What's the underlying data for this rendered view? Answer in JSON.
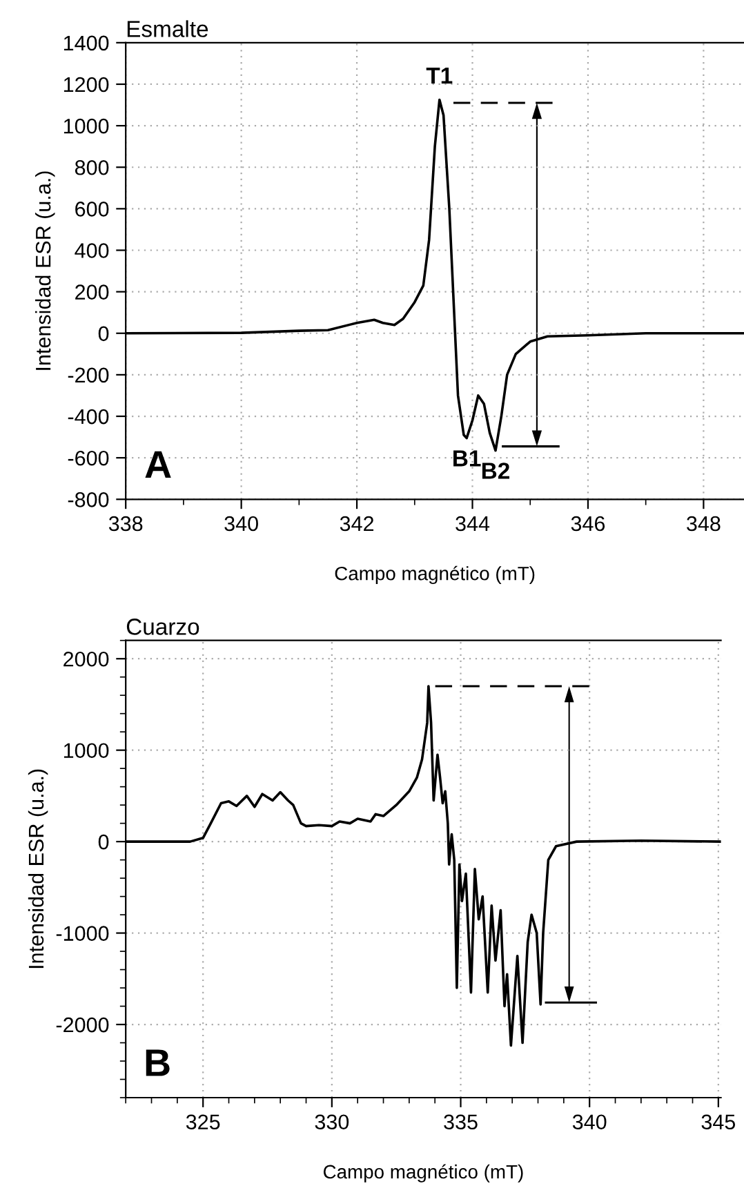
{
  "chart_data": [
    {
      "type": "line",
      "title": "Esmalte",
      "xlabel": "Campo magnético (mT)",
      "ylabel": "Intensidad ESR (u.a.)",
      "xlim": [
        338,
        348.7
      ],
      "xticks": [
        338,
        340,
        342,
        344,
        346,
        348
      ],
      "ylim": [
        -800,
        1400
      ],
      "yticks": [
        -800,
        -600,
        -400,
        -200,
        0,
        200,
        400,
        600,
        800,
        1000,
        1200,
        1400
      ],
      "grid": true,
      "legend": false,
      "line_style": "solid",
      "marker": "none",
      "series": [
        {
          "color": "#000000",
          "x": [
            338,
            340,
            341,
            341.5,
            342,
            342.3,
            342.45,
            342.65,
            342.8,
            343.0,
            343.15,
            343.25,
            343.35,
            343.43,
            343.5,
            343.6,
            343.7,
            343.75,
            343.85,
            343.9,
            344.0,
            344.1,
            344.2,
            344.3,
            344.4,
            344.5,
            344.6,
            344.75,
            345,
            345.3,
            346,
            347,
            348.7
          ],
          "values": [
            0,
            2,
            12,
            15,
            50,
            65,
            50,
            40,
            70,
            150,
            230,
            450,
            900,
            1125,
            1050,
            600,
            0,
            -300,
            -490,
            -505,
            -420,
            -300,
            -340,
            -480,
            -565,
            -400,
            -200,
            -100,
            -40,
            -15,
            -10,
            0,
            0
          ]
        }
      ],
      "ref_lines": [
        {
          "axis": "y",
          "value": 1110,
          "line_style": "dashed",
          "color": "#000000"
        },
        {
          "axis": "y",
          "value": -545,
          "line_style": "solid",
          "color": "#000000"
        }
      ],
      "annotations": [
        {
          "text": "T1",
          "x": 343.43,
          "y": 1125
        },
        {
          "text": "B1",
          "x": 343.9,
          "y": -505
        },
        {
          "text": "B2",
          "x": 344.4,
          "y": -565
        },
        "A"
      ]
    },
    {
      "type": "line",
      "title": "Cuarzo",
      "xlabel": "Campo magnético (mT)",
      "ylabel": "Intensidad ESR (u.a.)",
      "xlim": [
        322,
        345.1
      ],
      "xticks": [
        325,
        330,
        335,
        340,
        345
      ],
      "ylim": [
        -2800,
        2200
      ],
      "yticks": [
        -2000,
        -1000,
        0,
        1000,
        2000
      ],
      "grid": true,
      "legend": false,
      "line_style": "solid",
      "marker": "none",
      "series": [
        {
          "color": "#000000",
          "x": [
            322,
            324.5,
            325,
            325.3,
            325.7,
            326,
            326.3,
            326.7,
            327,
            327.3,
            327.7,
            328,
            328.3,
            328.5,
            328.8,
            329,
            329.5,
            330,
            330.3,
            330.7,
            331,
            331.5,
            331.7,
            332,
            332.5,
            333,
            333.3,
            333.5,
            333.6,
            333.7,
            333.75,
            333.85,
            333.95,
            334.1,
            334.2,
            334.3,
            334.4,
            334.5,
            334.55,
            334.65,
            334.75,
            334.85,
            334.95,
            335.05,
            335.2,
            335.4,
            335.55,
            335.7,
            335.85,
            336.05,
            336.2,
            336.35,
            336.55,
            336.7,
            336.8,
            336.95,
            337.2,
            337.4,
            337.6,
            337.75,
            337.95,
            338.1,
            338.2,
            338.4,
            338.7,
            339.5,
            342,
            345.1
          ],
          "values": [
            0,
            0,
            40,
            200,
            420,
            440,
            390,
            500,
            380,
            520,
            450,
            540,
            450,
            400,
            200,
            170,
            180,
            170,
            220,
            200,
            250,
            220,
            300,
            280,
            400,
            550,
            700,
            900,
            1100,
            1300,
            1700,
            1300,
            450,
            950,
            700,
            420,
            550,
            200,
            -250,
            80,
            -200,
            -1600,
            -250,
            -650,
            -350,
            -1650,
            -300,
            -850,
            -600,
            -1650,
            -700,
            -1300,
            -750,
            -1800,
            -1450,
            -2230,
            -1250,
            -2200,
            -1100,
            -800,
            -1000,
            -1780,
            -1000,
            -200,
            -50,
            0,
            10,
            0
          ]
        }
      ],
      "ref_lines": [
        {
          "axis": "y",
          "value": 1700,
          "line_style": "dashed",
          "color": "#000000"
        },
        {
          "axis": "y",
          "value": -1760,
          "line_style": "solid",
          "color": "#000000"
        }
      ],
      "annotations": [
        "B"
      ]
    }
  ]
}
